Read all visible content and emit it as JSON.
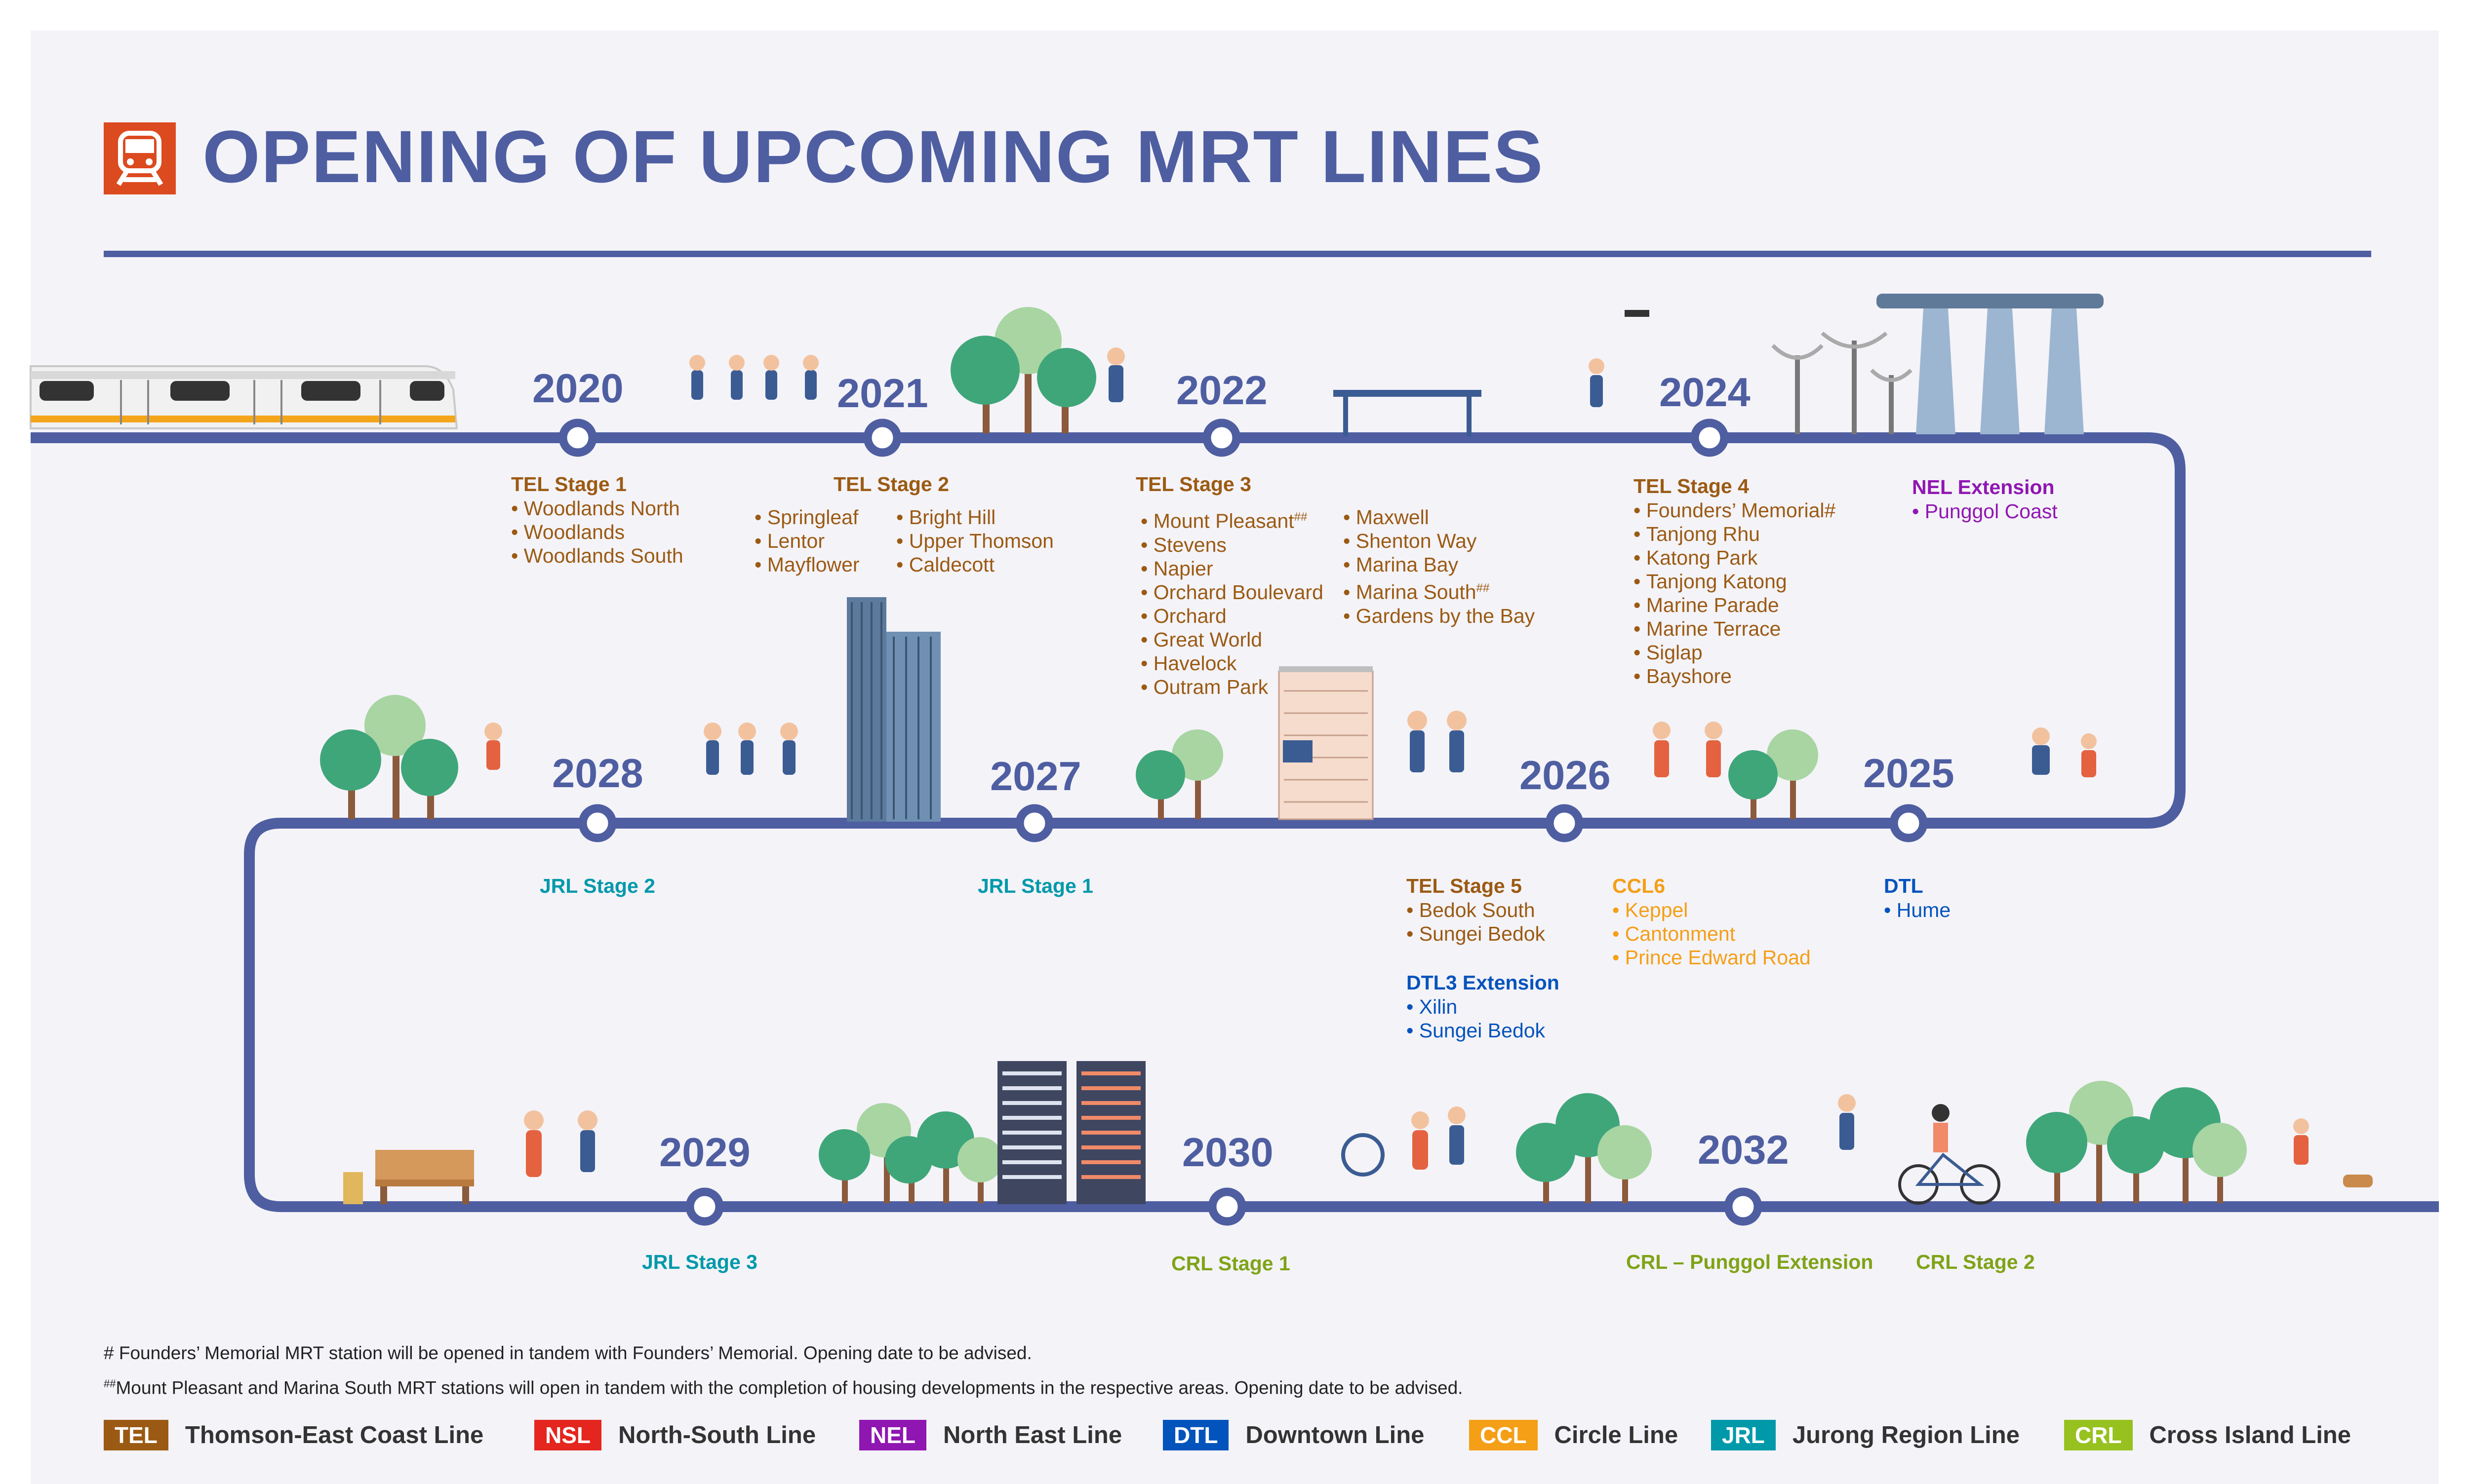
{
  "title": "OPENING OF UPCOMING MRT LINES",
  "colors": {
    "track": "#4e5ea1",
    "panel": "#f4f3f8",
    "TEL": "#9b5a13",
    "NSL": "#e4261f",
    "NEL": "#9016b2",
    "DTL": "#0353bd",
    "CCL": "#f49f16",
    "JRL": "#0099aa",
    "CRL": "#97c11f"
  },
  "years": {
    "y2020": "2020",
    "y2021": "2021",
    "y2022": "2022",
    "y2024": "2024",
    "y2025": "2025",
    "y2026": "2026",
    "y2027": "2027",
    "y2028": "2028",
    "y2029": "2029",
    "y2030": "2030",
    "y2032": "2032"
  },
  "sections": {
    "tel1": {
      "title": "TEL Stage 1",
      "stations": [
        "Woodlands North",
        "Woodlands",
        "Woodlands South"
      ]
    },
    "tel2": {
      "title": "TEL Stage 2",
      "col1": [
        "Springleaf",
        "Lentor",
        "Mayflower"
      ],
      "col2": [
        "Bright Hill",
        "Upper Thomson",
        "Caldecott"
      ]
    },
    "tel3": {
      "title": "TEL Stage 3",
      "col1": [
        "Mount Pleasant",
        "Stevens",
        "Napier",
        "Orchard Boulevard",
        "Orchard",
        "Great World",
        "Havelock",
        "Outram Park"
      ],
      "col2": [
        "Maxwell",
        "Shenton Way",
        "Marina Bay",
        "Marina South",
        "Gardens by the Bay"
      ],
      "mark": "##"
    },
    "tel4": {
      "title": "TEL Stage 4",
      "stations": [
        "Founders’ Memorial#",
        "Tanjong Rhu",
        "Katong Park",
        "Tanjong Katong",
        "Marine Parade",
        "Marine Terrace",
        "Siglap",
        "Bayshore"
      ]
    },
    "nel": {
      "title": "NEL Extension",
      "stations": [
        "Punggol Coast"
      ]
    },
    "dtl": {
      "title": "DTL",
      "stations": [
        "Hume"
      ]
    },
    "ccl6": {
      "title": "CCL6",
      "stations": [
        "Keppel",
        "Cantonment",
        "Prince Edward Road"
      ]
    },
    "tel5": {
      "title": "TEL Stage 5",
      "stations": [
        "Bedok South",
        "Sungei Bedok"
      ]
    },
    "dtl3": {
      "title": "DTL3 Extension",
      "stations": [
        "Xilin",
        "Sungei Bedok"
      ]
    },
    "jrl1": {
      "title": "JRL Stage 1"
    },
    "jrl2": {
      "title": "JRL Stage 2"
    },
    "jrl3": {
      "title": "JRL Stage 3"
    },
    "crl1": {
      "title": "CRL Stage 1"
    },
    "crlp": {
      "title": "CRL – Punggol Extension"
    },
    "crl2": {
      "title": "CRL Stage 2"
    }
  },
  "notes": {
    "n1": "# Founders’ Memorial MRT station will be opened in tandem with Founders’ Memorial. Opening date to be advised.",
    "n2_mark": "##",
    "n2": "Mount Pleasant and Marina South MRT stations will open in tandem with the completion of housing developments in the respective areas. Opening date to be advised."
  },
  "legend": [
    {
      "code": "TEL",
      "name": "Thomson-East Coast Line"
    },
    {
      "code": "NSL",
      "name": "North-South Line"
    },
    {
      "code": "NEL",
      "name": "North East Line"
    },
    {
      "code": "DTL",
      "name": "Downtown Line"
    },
    {
      "code": "CCL",
      "name": "Circle Line"
    },
    {
      "code": "JRL",
      "name": "Jurong Region Line"
    },
    {
      "code": "CRL",
      "name": "Cross Island Line"
    }
  ]
}
